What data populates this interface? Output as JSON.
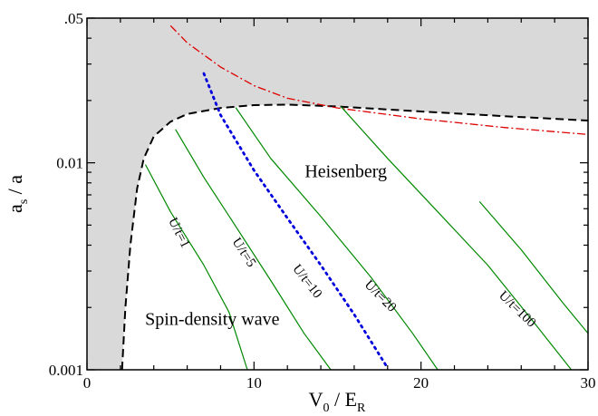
{
  "chart_data": {
    "type": "line",
    "title": "",
    "xlabel": {
      "main": "V",
      "sub0": "0",
      "mid": " / E",
      "sub1": "R"
    },
    "ylabel": {
      "main": "a",
      "sub0": "s",
      "rest": " / a"
    },
    "xlim": [
      0,
      30
    ],
    "ylim": [
      0.001,
      0.05
    ],
    "yscale": "log",
    "xticks": [
      0,
      10,
      20,
      30
    ],
    "xtick_labels": [
      "0",
      "10",
      "20",
      "30"
    ],
    "yticks": [
      0.001,
      0.01,
      0.05
    ],
    "ytick_labels": [
      "0.001",
      "0.01",
      ".05"
    ],
    "grid": false,
    "colors": {
      "shaded_region": "#d9d9d9",
      "boundary": "#000000",
      "red_curve": "#dd0000",
      "blue_curve": "#0000dd",
      "u_t_lines": "#008800"
    },
    "regions": [
      {
        "label": "Heisenberg",
        "x": 15.5,
        "y": 0.0085
      },
      {
        "label": "Spin-density wave",
        "x": 7.5,
        "y": 0.00165
      }
    ],
    "series": [
      {
        "style": "dashed-black",
        "points": [
          [
            2.1,
            0.001
          ],
          [
            2.3,
            0.002
          ],
          [
            2.6,
            0.004
          ],
          [
            3.0,
            0.0075
          ],
          [
            3.4,
            0.0105
          ],
          [
            4.0,
            0.0134
          ],
          [
            5.0,
            0.0158
          ],
          [
            6.0,
            0.0172
          ],
          [
            8.0,
            0.0184
          ],
          [
            10.0,
            0.019
          ],
          [
            12.0,
            0.0191
          ],
          [
            15.0,
            0.0187
          ],
          [
            20.0,
            0.0177
          ],
          [
            25.0,
            0.0168
          ],
          [
            30.0,
            0.016
          ]
        ]
      },
      {
        "style": "dashdot-red",
        "points": [
          [
            5.0,
            0.046
          ],
          [
            6.0,
            0.038
          ],
          [
            8.0,
            0.029
          ],
          [
            10.0,
            0.0236
          ],
          [
            12.0,
            0.0205
          ],
          [
            15.0,
            0.0184
          ],
          [
            20.0,
            0.0163
          ],
          [
            25.0,
            0.0148
          ],
          [
            30.0,
            0.0137
          ]
        ]
      },
      {
        "style": "dotted-blue",
        "points": [
          [
            7.0,
            0.027
          ],
          [
            8.0,
            0.017
          ],
          [
            10.0,
            0.0092
          ],
          [
            12.0,
            0.0054
          ],
          [
            14.0,
            0.0032
          ],
          [
            16.0,
            0.00185
          ],
          [
            18.0,
            0.00102
          ]
        ]
      },
      {
        "style": "solid-green",
        "label": "U/t=1",
        "points": [
          [
            3.5,
            0.0098
          ],
          [
            5.0,
            0.0058
          ],
          [
            7.0,
            0.0032
          ],
          [
            8.5,
            0.0019
          ],
          [
            9.6,
            0.001
          ]
        ]
      },
      {
        "style": "solid-green",
        "label": "U/t=5",
        "points": [
          [
            5.3,
            0.0145
          ],
          [
            7.0,
            0.0085
          ],
          [
            9.0,
            0.0048
          ],
          [
            11.0,
            0.0027
          ],
          [
            13.0,
            0.0015
          ],
          [
            14.6,
            0.001
          ]
        ]
      },
      {
        "style": "solid-green",
        "label": "U/t=10",
        "points": [
          [
            8.9,
            0.0185
          ],
          [
            11.0,
            0.0105
          ],
          [
            14.0,
            0.0055
          ],
          [
            17.0,
            0.0028
          ],
          [
            19.5,
            0.0015
          ],
          [
            21.0,
            0.001
          ]
        ]
      },
      {
        "style": "solid-green",
        "label": "U/t=20",
        "points": [
          [
            15.2,
            0.0187
          ],
          [
            18.0,
            0.0105
          ],
          [
            21.0,
            0.0058
          ],
          [
            24.0,
            0.0032
          ],
          [
            26.5,
            0.0018
          ],
          [
            29.0,
            0.001
          ]
        ]
      },
      {
        "style": "solid-green",
        "label": "U/t=100",
        "points": [
          [
            23.5,
            0.0065
          ],
          [
            26.0,
            0.0038
          ],
          [
            28.5,
            0.0021
          ],
          [
            30.0,
            0.0015
          ]
        ]
      }
    ],
    "curve_labels": [
      {
        "text": "U/t=1",
        "x": 5.3,
        "y": 0.0045,
        "angle": 63
      },
      {
        "text": "U/t=5",
        "x": 9.2,
        "y": 0.0036,
        "angle": 57
      },
      {
        "text": "U/t=10",
        "x": 13.0,
        "y": 0.0026,
        "angle": 52
      },
      {
        "text": "U/t=20",
        "x": 17.4,
        "y": 0.0022,
        "angle": 45
      },
      {
        "text": "U/t=100",
        "x": 25.6,
        "y": 0.0019,
        "angle": 44
      }
    ]
  }
}
